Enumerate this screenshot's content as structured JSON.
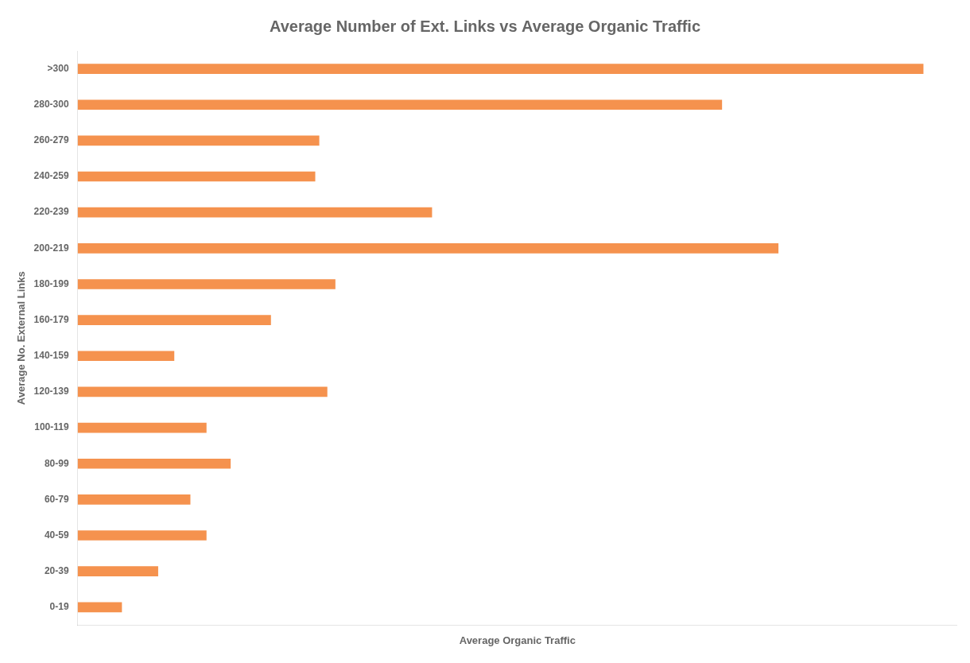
{
  "chart_data": {
    "type": "bar",
    "orientation": "horizontal",
    "title": "Average Number of Ext. Links vs Average Organic Traffic",
    "x_label": "Average Organic Traffic",
    "y_label": "Average No. External Links",
    "categories": [
      ">300",
      "280-300",
      "260-279",
      "240-259",
      "220-239",
      "200-219",
      "180-199",
      "160-179",
      "140-159",
      "120-139",
      "100-119",
      "80-99",
      "60-79",
      "40-59",
      "20-39",
      "0-19"
    ],
    "values": [
      105000,
      80000,
      30000,
      29500,
      44000,
      87000,
      32000,
      24000,
      12000,
      31000,
      16000,
      19000,
      14000,
      16000,
      10000,
      5500
    ],
    "color": "#f5924e",
    "xlim": [
      0,
      109200
    ],
    "xticks": [],
    "grid": false,
    "tick_labels": "y"
  }
}
